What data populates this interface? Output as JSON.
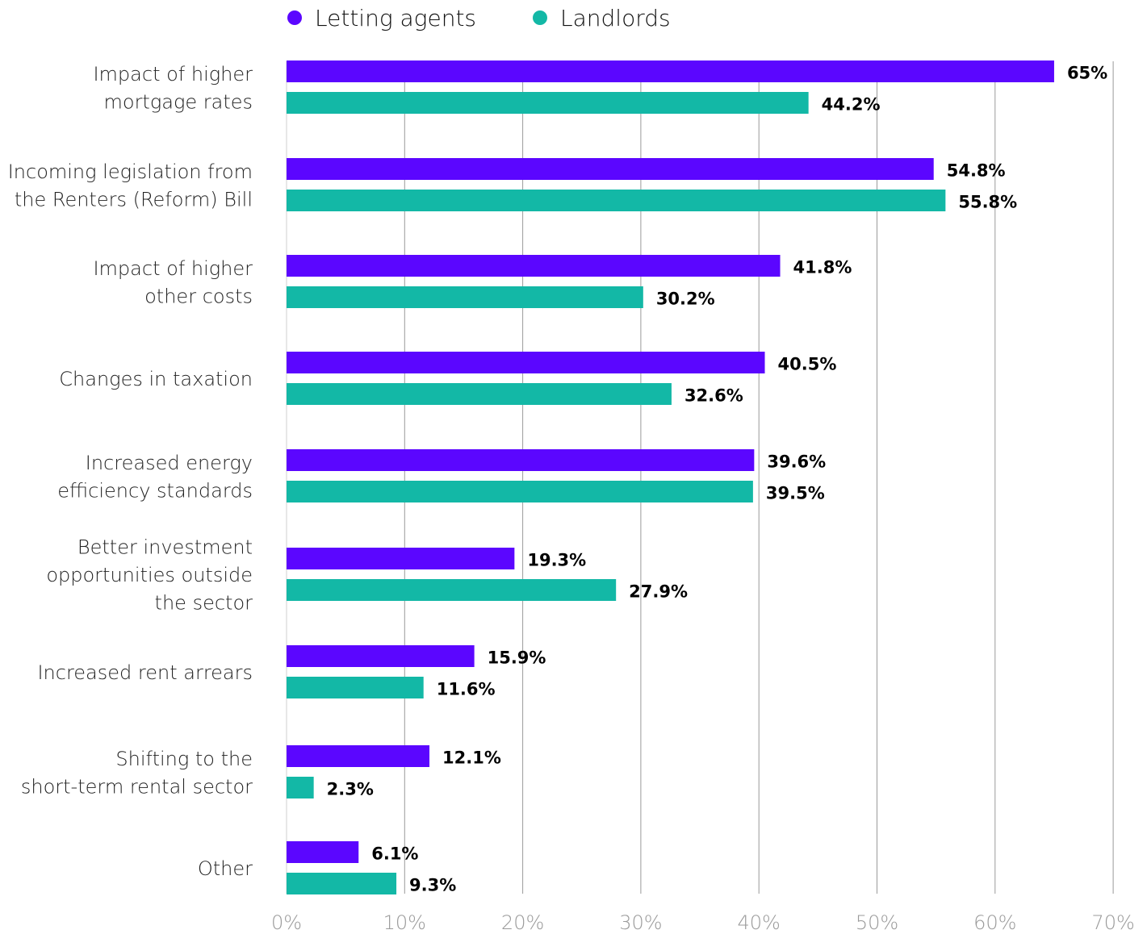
{
  "colors": {
    "letting_agents": "#5b06ff",
    "landlords": "#13b8a6",
    "grid": "#9a9a9a",
    "axis_text": "#9a9a9a"
  },
  "legend": [
    {
      "label": "Letting agents",
      "color": "#5b06ff"
    },
    {
      "label": "Landlords",
      "color": "#13b8a6"
    }
  ],
  "chart_data": {
    "type": "bar",
    "orientation": "horizontal",
    "categories": [
      [
        "Impact of higher",
        "mortgage rates"
      ],
      [
        "Incoming legislation from",
        "the Renters (Reform) Bill"
      ],
      [
        "Impact of higher",
        "other costs"
      ],
      [
        "Changes in taxation"
      ],
      [
        "Increased energy",
        "efficiency standards"
      ],
      [
        "Better investment",
        "opportunities outside",
        "the sector"
      ],
      [
        "Increased rent arrears"
      ],
      [
        "Shifting to the",
        "short-term rental sector"
      ],
      [
        "Other"
      ]
    ],
    "series": [
      {
        "name": "Letting agents",
        "values": [
          65,
          54.8,
          41.8,
          40.5,
          39.6,
          19.3,
          15.9,
          12.1,
          6.1
        ],
        "labels": [
          "65%",
          "54.8%",
          "41.8%",
          "40.5%",
          "39.6%",
          "19.3%",
          "15.9%",
          "12.1%",
          "6.1%"
        ]
      },
      {
        "name": "Landlords",
        "values": [
          44.2,
          55.8,
          30.2,
          32.6,
          39.5,
          27.9,
          11.6,
          2.3,
          9.3
        ],
        "labels": [
          "44.2%",
          "55.8%",
          "30.2%",
          "32.6%",
          "39.5%",
          "27.9%",
          "11.6%",
          "2.3%",
          "9.3%"
        ]
      }
    ],
    "xlim": [
      0,
      70
    ],
    "xticks": [
      "0%",
      "10%",
      "20%",
      "30%",
      "40%",
      "50%",
      "60%",
      "70%"
    ],
    "grid": true,
    "legend_position": "top"
  }
}
